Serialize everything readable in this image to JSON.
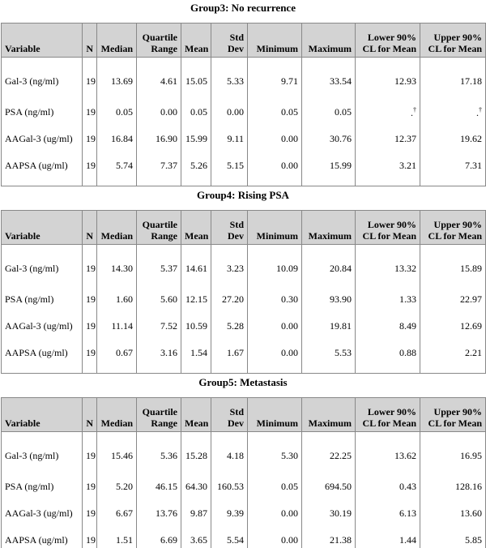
{
  "columns": [
    [
      "Variable"
    ],
    [
      "N"
    ],
    [
      "Median"
    ],
    [
      "Quartile",
      "Range"
    ],
    [
      "Mean"
    ],
    [
      "Std Dev"
    ],
    [
      "Minimum"
    ],
    [
      "Maximum"
    ],
    [
      "Lower 90%",
      "CL for Mean"
    ],
    [
      "Upper 90%",
      "CL for Mean"
    ]
  ],
  "groups": [
    {
      "title": "Group3: No recurrence",
      "rows": [
        [
          "Gal-3 (ng/ml)",
          "19",
          "13.69",
          "4.61",
          "15.05",
          "5.33",
          "9.71",
          "33.54",
          "12.93",
          "17.18"
        ],
        [
          "PSA (ng/ml)",
          "19",
          "0.05",
          "0.00",
          "0.05",
          "0.00",
          "0.05",
          "0.05",
          {
            "text": ".",
            "sup": "†"
          },
          {
            "text": ".",
            "sup": "†"
          }
        ],
        [
          "AAGal-3 (ug/ml)",
          "19",
          "16.84",
          "16.90",
          "15.99",
          "9.11",
          "0.00",
          "30.76",
          "12.37",
          "19.62"
        ],
        [
          "AAPSA (ug/ml)",
          "19",
          "5.74",
          "7.37",
          "5.26",
          "5.15",
          "0.00",
          "15.99",
          "3.21",
          "7.31"
        ]
      ]
    },
    {
      "title": "Group4: Rising PSA",
      "rows": [
        [
          "Gal-3 (ng/ml)",
          "19",
          "14.30",
          "5.37",
          "14.61",
          "3.23",
          "10.09",
          "20.84",
          "13.32",
          "15.89"
        ],
        [
          "PSA (ng/ml)",
          "19",
          "1.60",
          "5.60",
          "12.15",
          "27.20",
          "0.30",
          "93.90",
          "1.33",
          "22.97"
        ],
        [
          "AAGal-3 (ug/ml)",
          "19",
          "11.14",
          "7.52",
          "10.59",
          "5.28",
          "0.00",
          "19.81",
          "8.49",
          "12.69"
        ],
        [
          "AAPSA (ug/ml)",
          "19",
          "0.67",
          "3.16",
          "1.54",
          "1.67",
          "0.00",
          "5.53",
          "0.88",
          "2.21"
        ]
      ]
    },
    {
      "title": "Group5: Metastasis",
      "rows": [
        [
          "Gal-3 (ng/ml)",
          "19",
          "15.46",
          "5.36",
          "15.28",
          "4.18",
          "5.30",
          "22.25",
          "13.62",
          "16.95"
        ],
        [
          "PSA (ng/ml)",
          "19",
          "5.20",
          "46.15",
          "64.30",
          "160.53",
          "0.05",
          "694.50",
          "0.43",
          "128.16"
        ],
        [
          "AAGal-3 (ug/ml)",
          "19",
          "6.67",
          "13.76",
          "9.87",
          "9.39",
          "0.00",
          "30.19",
          "6.13",
          "13.60"
        ],
        [
          "AAPSA (ug/ml)",
          "19",
          "1.51",
          "6.69",
          "3.65",
          "5.54",
          "0.00",
          "21.38",
          "1.44",
          "5.85"
        ]
      ]
    }
  ]
}
